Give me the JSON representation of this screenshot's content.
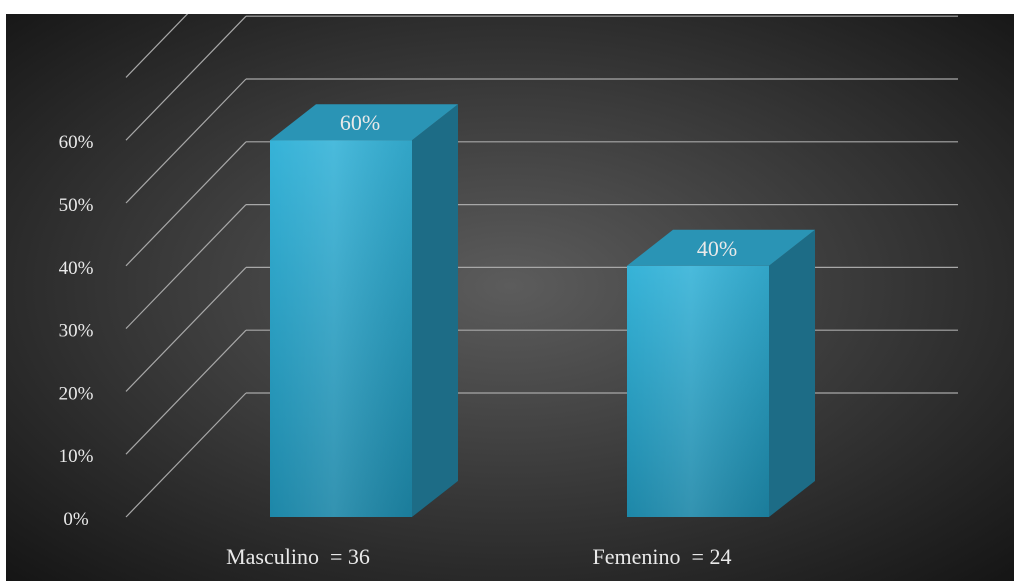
{
  "chart_data": {
    "type": "bar",
    "title": "",
    "xlabel": "",
    "ylabel": "",
    "categories": [
      "Masculino  = 36",
      "Femenino  = 24"
    ],
    "values": [
      60,
      40
    ],
    "value_labels": [
      "60%",
      "40%"
    ],
    "y_ticks": [
      "0%",
      "10%",
      "20%",
      "30%",
      "40%",
      "50%",
      "60%"
    ],
    "ylim": [
      0,
      70
    ],
    "grid": true,
    "legend": "none",
    "style": "3d-column"
  },
  "colors": {
    "background_center": "#5c5c5c",
    "background_edge": "#151515",
    "bar_front_light": "#36b3d8",
    "bar_front_dark": "#1d87a8",
    "bar_top": "#2a94b5",
    "bar_side": "#1d6c86",
    "grid": "#a8a8a8",
    "text": "#e9e9e9"
  }
}
